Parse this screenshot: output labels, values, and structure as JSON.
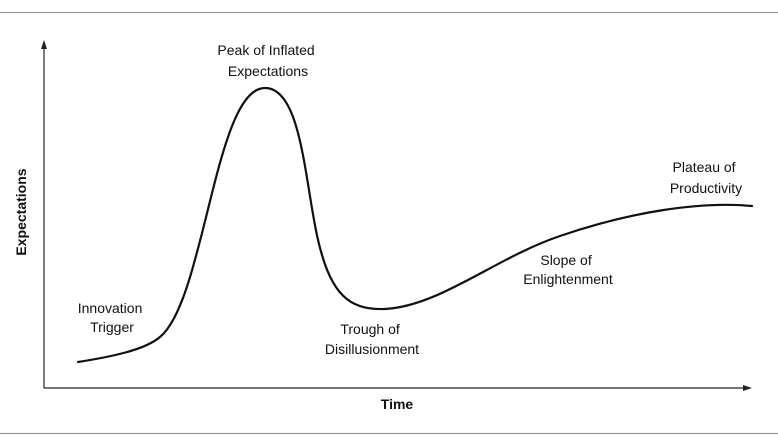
{
  "axes": {
    "y_label": "Expectations",
    "x_label": "Time"
  },
  "phases": {
    "innovation_trigger": [
      "Innovation",
      "Trigger"
    ],
    "peak": [
      "Peak of Inflated",
      "Expectations"
    ],
    "trough": [
      "Trough of",
      "Disillusionment"
    ],
    "slope": [
      "Slope of",
      "Enlightenment"
    ],
    "plateau": [
      "Plateau of",
      "Productivity"
    ]
  },
  "colors": {
    "line": "#111111",
    "axis": "#222222",
    "rule": "#8a8a8a"
  }
}
